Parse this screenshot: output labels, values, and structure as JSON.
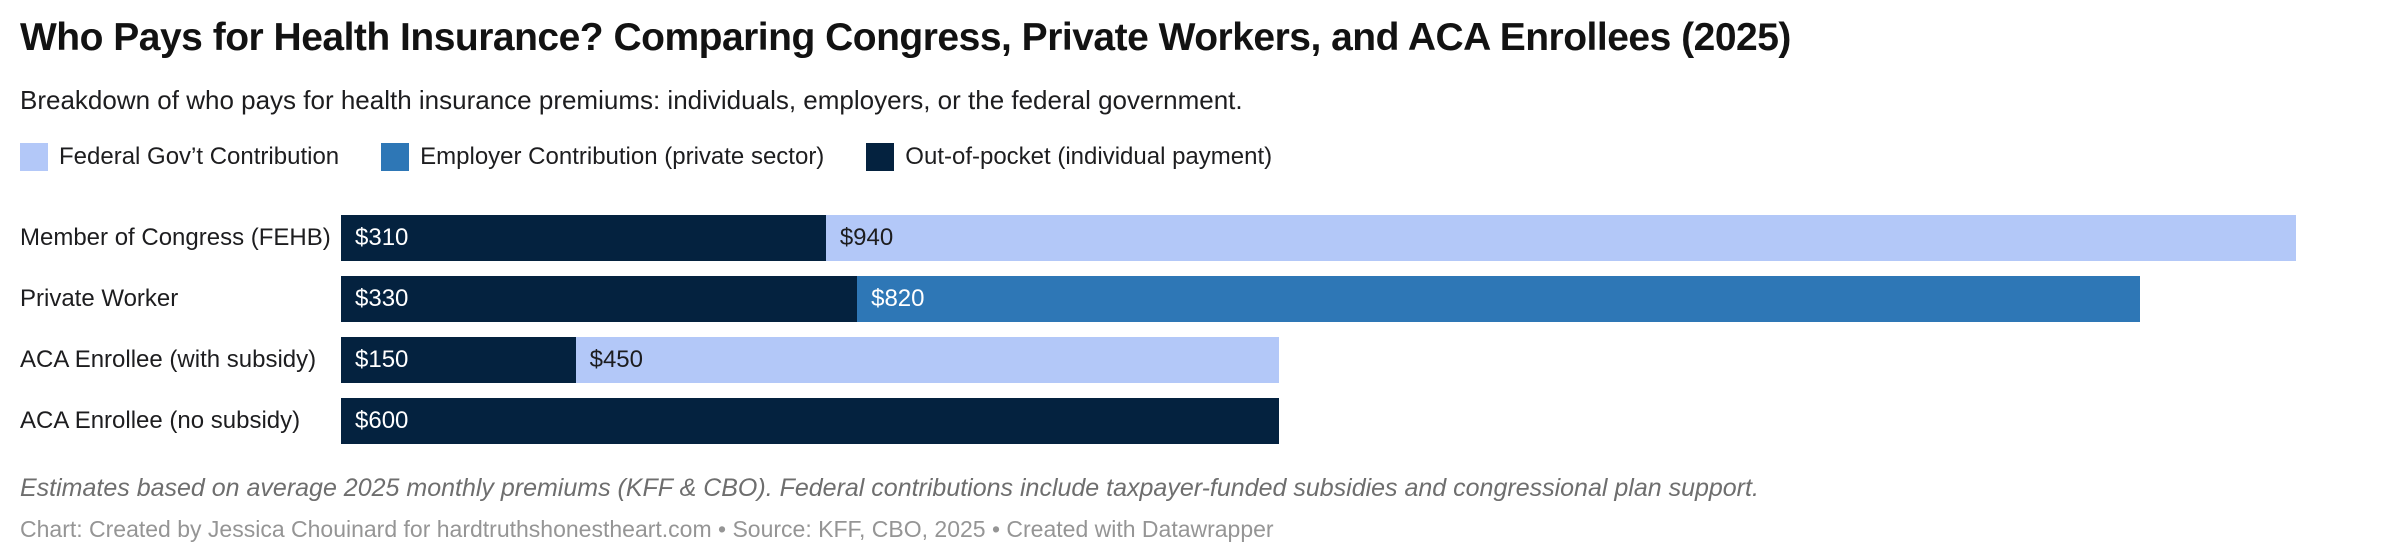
{
  "header": {
    "title": "Who Pays for Health Insurance? Comparing Congress, Private Workers, and ACA Enrollees (2025)",
    "subtitle": "Breakdown of who pays for health insurance premiums: individuals, employers, or the federal government."
  },
  "legend": {
    "items": [
      {
        "label": "Federal Gov’t Contribution",
        "color": "#b3c8f8"
      },
      {
        "label": "Employer Contribution (private sector)",
        "color": "#2e77b6"
      },
      {
        "label": "Out-of-pocket (individual payment)",
        "color": "#04223f"
      }
    ]
  },
  "chart_data": {
    "type": "bar",
    "stacked": true,
    "orientation": "horizontal",
    "title": "Who Pays for Health Insurance? Comparing Congress, Private Workers, and ACA Enrollees (2025)",
    "categories": [
      "Member of Congress (FEHB)",
      "Private Worker",
      "ACA Enrollee (with subsidy)",
      "ACA Enrollee (no subsidy)"
    ],
    "series": [
      {
        "name": "Out-of-pocket (individual payment)",
        "key": "out-of-pocket",
        "color": "#04223f",
        "label_color": "#ffffff",
        "values": [
          310,
          330,
          150,
          600
        ]
      },
      {
        "name": "Employer Contribution (private sector)",
        "key": "employer",
        "color": "#2e77b6",
        "label_color": "#ffffff",
        "values": [
          0,
          820,
          0,
          0
        ]
      },
      {
        "name": "Federal Gov’t Contribution",
        "key": "federal",
        "color": "#b3c8f8",
        "label_color": "#1d1d1f",
        "values": [
          940,
          0,
          450,
          0
        ]
      }
    ],
    "totals": [
      1250,
      1150,
      600,
      600
    ],
    "value_prefix": "$",
    "xmax": 1250,
    "axis_visible": false,
    "grid": false,
    "legend_position": "top"
  },
  "footer": {
    "note": "Estimates based on average 2025 monthly premiums (KFF & CBO). Federal contributions include taxpayer-funded subsidies and congressional plan support.",
    "byline": "Chart: Created by Jessica Chouinard for hardtruthshonestheart.com • Source: KFF, CBO, 2025 • Created with Datawrapper"
  },
  "colors": {
    "background": "#ffffff",
    "title_text": "#121212",
    "note_text": "#6e6e6e",
    "byline_text": "#959595"
  }
}
